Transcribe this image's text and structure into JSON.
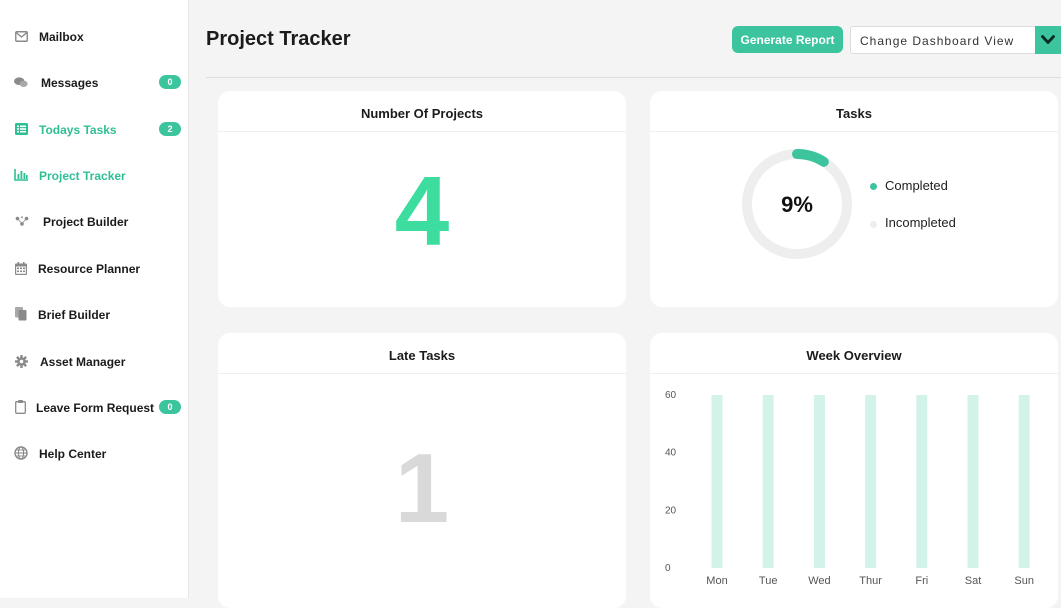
{
  "sidebar": {
    "items": [
      {
        "label": "Mailbox",
        "icon": "mail-icon"
      },
      {
        "label": "Messages",
        "icon": "chat-icon",
        "badge": "0"
      },
      {
        "label": "Todays Tasks",
        "icon": "list-icon",
        "badge": "2"
      },
      {
        "label": "Project Tracker",
        "icon": "bar-chart-icon",
        "active": true
      },
      {
        "label": "Project Builder",
        "icon": "nodes-icon"
      },
      {
        "label": "Resource Planner",
        "icon": "calendar-icon"
      },
      {
        "label": "Brief Builder",
        "icon": "documents-icon"
      },
      {
        "label": "Asset Manager",
        "icon": "gear-icon"
      },
      {
        "label": "Leave Form Request",
        "icon": "clipboard-icon",
        "badge": "0"
      },
      {
        "label": "Help Center",
        "icon": "globe-icon"
      }
    ]
  },
  "header": {
    "title": "Project Tracker",
    "generate_report_label": "Generate Report",
    "dashboard_view_label": "Change Dashboard View"
  },
  "cards": {
    "projects": {
      "title": "Number Of Projects",
      "value": "4"
    },
    "tasks": {
      "title": "Tasks",
      "percent_label": "9%",
      "percent": 9,
      "legend": [
        {
          "label": "Completed",
          "color": "#3cc49f"
        },
        {
          "label": "Incompleted",
          "color": "#eeeeee"
        }
      ]
    },
    "late_tasks": {
      "title": "Late Tasks",
      "value": "1"
    },
    "week_overview": {
      "title": "Week Overview"
    }
  },
  "colors": {
    "accent": "#3cc49f",
    "bar": "#d3f3ea",
    "ring_track": "#eeeeee",
    "late_number": "#d9d9d9"
  },
  "chart_data": {
    "type": "bar",
    "title": "Week Overview",
    "categories": [
      "Mon",
      "Tue",
      "Wed",
      "Thur",
      "Fri",
      "Sat",
      "Sun"
    ],
    "values": [
      60,
      60,
      60,
      60,
      60,
      60,
      60
    ],
    "yticks": [
      "0",
      "20",
      "40",
      "60"
    ],
    "ylim": [
      0,
      60
    ],
    "grid": false,
    "legend": "none"
  }
}
